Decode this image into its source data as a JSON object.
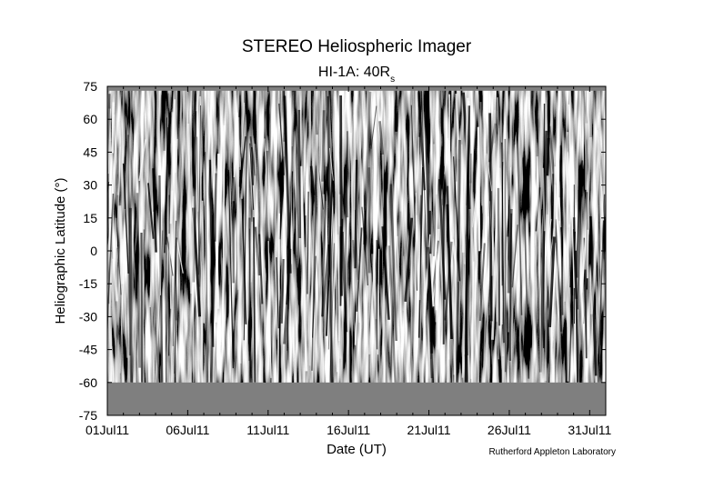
{
  "chart_data": {
    "type": "heatmap",
    "title": "STEREO Heliospheric Imager",
    "subtitle_main": "HI-1A: 40R",
    "subtitle_sub": "s",
    "xlabel": "Date (UT)",
    "ylabel": "Heliographic Latitude (°)",
    "x_ticks": [
      "01Jul11",
      "06Jul11",
      "11Jul11",
      "16Jul11",
      "21Jul11",
      "26Jul11",
      "31Jul11"
    ],
    "x_tick_days": [
      1,
      6,
      11,
      16,
      21,
      26,
      31
    ],
    "xlim_days": [
      1,
      32
    ],
    "y_ticks": [
      75,
      60,
      45,
      30,
      15,
      0,
      -15,
      -30,
      -45,
      -60,
      -75
    ],
    "ylim": [
      -75,
      75
    ],
    "data_coverage_lat": [
      -60,
      73
    ],
    "colormap": "grayscale",
    "no_data_color": "#7f7f7f",
    "grid": false,
    "credit": "Rutherford Appleton Laboratory"
  }
}
